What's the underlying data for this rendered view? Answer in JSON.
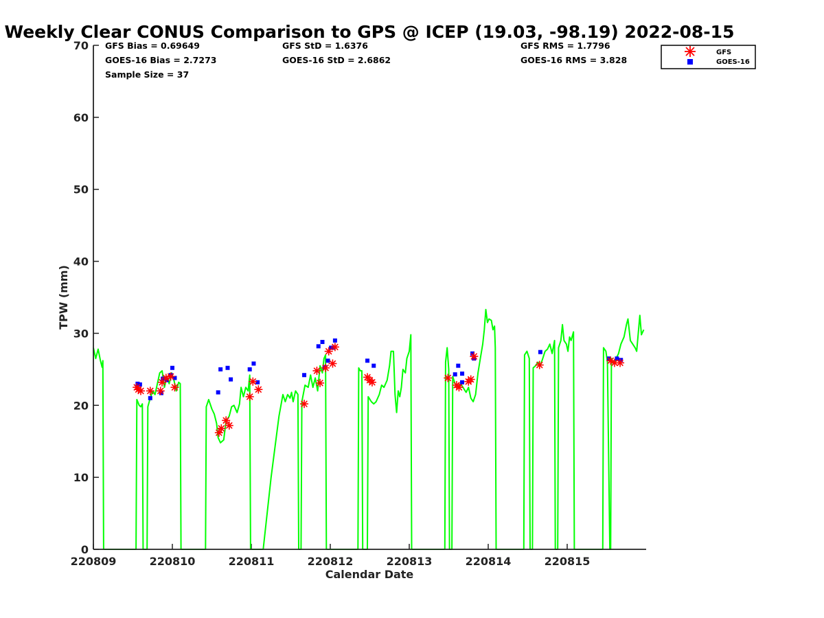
{
  "chart_data": {
    "type": "line+scatter",
    "title": "Weekly Clear CONUS Comparison to GPS @ ICEP (19.03, -98.19) 2022-08-15",
    "xlabel": "Calendar Date",
    "ylabel": "TPW (mm)",
    "xlim": [
      0,
      7
    ],
    "ylim": [
      0,
      70
    ],
    "yticks": [
      0,
      10,
      20,
      30,
      40,
      50,
      60,
      70
    ],
    "xticks": [
      {
        "value": 0,
        "label": "220809"
      },
      {
        "value": 1,
        "label": "220810"
      },
      {
        "value": 2,
        "label": "220811"
      },
      {
        "value": 3,
        "label": "220812"
      },
      {
        "value": 4,
        "label": "220813"
      },
      {
        "value": 5,
        "label": "220814"
      },
      {
        "value": 6,
        "label": "220815"
      }
    ],
    "stats": {
      "gfs_bias": "GFS Bias = 0.69649",
      "goes_bias": "GOES-16 Bias = 2.7273",
      "sample_size": "Sample Size = 37",
      "gfs_std": "GFS StD = 1.6376",
      "goes_std": "GOES-16 StD = 2.6862",
      "gfs_rms": "GFS RMS = 1.7796",
      "goes_rms": "GOES-16 RMS = 3.828"
    },
    "legend": {
      "position": "top-right",
      "entries": [
        {
          "name": "GFS",
          "color": "#ff0000",
          "marker": "asterisk"
        },
        {
          "name": "GOES-16",
          "color": "#0000ff",
          "marker": "square"
        }
      ]
    },
    "gps_line": {
      "color": "#00ff00",
      "points": [
        [
          0.0,
          28.0
        ],
        [
          0.03,
          26.5
        ],
        [
          0.06,
          27.8
        ],
        [
          0.09,
          26.2
        ],
        [
          0.11,
          25.3
        ],
        [
          0.12,
          26.2
        ],
        [
          0.13,
          0
        ],
        [
          0.54,
          0
        ],
        [
          0.55,
          20.8
        ],
        [
          0.58,
          20.0
        ],
        [
          0.6,
          19.8
        ],
        [
          0.62,
          20.2
        ],
        [
          0.63,
          0
        ],
        [
          0.68,
          0
        ],
        [
          0.69,
          19.8
        ],
        [
          0.72,
          21.0
        ],
        [
          0.75,
          22.0
        ],
        [
          0.78,
          21.5
        ],
        [
          0.81,
          23.0
        ],
        [
          0.84,
          24.5
        ],
        [
          0.87,
          24.8
        ],
        [
          0.9,
          22.5
        ],
        [
          0.93,
          24.0
        ],
        [
          0.96,
          23.0
        ],
        [
          0.99,
          24.5
        ],
        [
          1.02,
          23.5
        ],
        [
          1.05,
          22.0
        ],
        [
          1.08,
          23.2
        ],
        [
          1.1,
          23.0
        ],
        [
          1.11,
          0
        ],
        [
          1.42,
          0
        ],
        [
          1.43,
          19.8
        ],
        [
          1.46,
          20.8
        ],
        [
          1.5,
          19.5
        ],
        [
          1.53,
          18.8
        ],
        [
          1.56,
          17.5
        ],
        [
          1.58,
          15.5
        ],
        [
          1.61,
          14.8
        ],
        [
          1.65,
          15.2
        ],
        [
          1.68,
          17.8
        ],
        [
          1.72,
          18.5
        ],
        [
          1.75,
          19.8
        ],
        [
          1.78,
          20.0
        ],
        [
          1.82,
          19.0
        ],
        [
          1.85,
          20.2
        ],
        [
          1.87,
          22.5
        ],
        [
          1.9,
          21.2
        ],
        [
          1.93,
          22.5
        ],
        [
          1.96,
          22.0
        ],
        [
          1.98,
          24.2
        ],
        [
          1.99,
          0
        ],
        [
          2.15,
          0
        ],
        [
          2.25,
          10.0
        ],
        [
          2.35,
          18.5
        ],
        [
          2.4,
          21.5
        ],
        [
          2.43,
          20.5
        ],
        [
          2.46,
          21.5
        ],
        [
          2.49,
          21.0
        ],
        [
          2.51,
          21.8
        ],
        [
          2.53,
          20.5
        ],
        [
          2.56,
          22.0
        ],
        [
          2.59,
          21.5
        ],
        [
          2.6,
          0
        ],
        [
          2.63,
          0
        ],
        [
          2.64,
          20.5
        ],
        [
          2.68,
          22.8
        ],
        [
          2.72,
          22.5
        ],
        [
          2.75,
          24.2
        ],
        [
          2.78,
          22.5
        ],
        [
          2.81,
          23.8
        ],
        [
          2.84,
          22.0
        ],
        [
          2.87,
          25.5
        ],
        [
          2.9,
          24.5
        ],
        [
          2.92,
          26.5
        ],
        [
          2.94,
          27.0
        ],
        [
          2.95,
          0
        ],
        [
          3.35,
          0
        ],
        [
          3.36,
          25.2
        ],
        [
          3.38,
          24.8
        ],
        [
          3.4,
          24.8
        ],
        [
          3.41,
          0
        ],
        [
          3.47,
          0
        ],
        [
          3.48,
          21.2
        ],
        [
          3.52,
          20.5
        ],
        [
          3.55,
          20.2
        ],
        [
          3.58,
          20.5
        ],
        [
          3.62,
          21.5
        ],
        [
          3.65,
          22.8
        ],
        [
          3.68,
          22.5
        ],
        [
          3.72,
          23.5
        ],
        [
          3.75,
          25.5
        ],
        [
          3.77,
          27.5
        ],
        [
          3.8,
          27.5
        ],
        [
          3.82,
          21.5
        ],
        [
          3.84,
          19.0
        ],
        [
          3.86,
          22.0
        ],
        [
          3.88,
          21.2
        ],
        [
          3.9,
          22.5
        ],
        [
          3.92,
          25.0
        ],
        [
          3.95,
          24.5
        ],
        [
          3.97,
          26.5
        ],
        [
          4.0,
          27.5
        ],
        [
          4.02,
          29.8
        ],
        [
          4.03,
          0
        ],
        [
          4.45,
          0
        ],
        [
          4.46,
          26.0
        ],
        [
          4.48,
          28.0
        ],
        [
          4.5,
          25.0
        ],
        [
          4.51,
          0
        ],
        [
          4.54,
          0
        ],
        [
          4.55,
          24.0
        ],
        [
          4.58,
          23.0
        ],
        [
          4.62,
          22.5
        ],
        [
          4.65,
          23.0
        ],
        [
          4.68,
          22.5
        ],
        [
          4.72,
          21.8
        ],
        [
          4.75,
          22.5
        ],
        [
          4.78,
          21.0
        ],
        [
          4.81,
          20.5
        ],
        [
          4.84,
          21.5
        ],
        [
          4.87,
          24.5
        ],
        [
          4.9,
          26.5
        ],
        [
          4.93,
          28.5
        ],
        [
          4.95,
          30.5
        ],
        [
          4.97,
          33.3
        ],
        [
          4.99,
          31.5
        ],
        [
          5.01,
          32.0
        ],
        [
          5.04,
          31.8
        ],
        [
          5.06,
          30.5
        ],
        [
          5.08,
          31.0
        ],
        [
          5.09,
          28.0
        ],
        [
          5.1,
          0
        ],
        [
          5.45,
          0
        ],
        [
          5.46,
          27.0
        ],
        [
          5.49,
          27.5
        ],
        [
          5.52,
          26.5
        ],
        [
          5.53,
          0
        ],
        [
          5.56,
          0
        ],
        [
          5.57,
          25.2
        ],
        [
          5.6,
          25.5
        ],
        [
          5.63,
          26.0
        ],
        [
          5.66,
          25.5
        ],
        [
          5.69,
          26.5
        ],
        [
          5.72,
          27.5
        ],
        [
          5.75,
          27.8
        ],
        [
          5.78,
          28.5
        ],
        [
          5.81,
          27.2
        ],
        [
          5.84,
          29.0
        ],
        [
          5.85,
          0
        ],
        [
          5.88,
          0
        ],
        [
          5.89,
          28.0
        ],
        [
          5.92,
          29.0
        ],
        [
          5.94,
          31.2
        ],
        [
          5.96,
          29.0
        ],
        [
          5.99,
          28.5
        ],
        [
          6.01,
          27.5
        ],
        [
          6.03,
          29.5
        ],
        [
          6.05,
          29.0
        ],
        [
          6.08,
          30.2
        ],
        [
          6.09,
          0
        ],
        [
          6.45,
          0
        ],
        [
          6.46,
          28.0
        ],
        [
          6.49,
          27.5
        ],
        [
          6.51,
          26.0
        ],
        [
          6.54,
          0
        ],
        [
          6.55,
          0
        ],
        [
          6.56,
          26.5
        ],
        [
          6.59,
          25.8
        ],
        [
          6.62,
          26.5
        ],
        [
          6.65,
          27.2
        ],
        [
          6.68,
          28.5
        ],
        [
          6.72,
          29.5
        ],
        [
          6.75,
          31.2
        ],
        [
          6.77,
          32.0
        ],
        [
          6.8,
          29.0
        ],
        [
          6.83,
          28.5
        ],
        [
          6.86,
          28.0
        ],
        [
          6.88,
          27.5
        ],
        [
          6.9,
          30.0
        ],
        [
          6.92,
          32.5
        ],
        [
          6.94,
          29.8
        ],
        [
          6.97,
          30.5
        ]
      ]
    },
    "gfs_points": [
      [
        0.55,
        22.5
      ],
      [
        0.57,
        22.2
      ],
      [
        0.6,
        22.0
      ],
      [
        0.72,
        22.0
      ],
      [
        0.85,
        22.0
      ],
      [
        0.87,
        23.2
      ],
      [
        0.92,
        23.8
      ],
      [
        0.98,
        24.0
      ],
      [
        1.03,
        22.5
      ],
      [
        1.59,
        16.2
      ],
      [
        1.62,
        16.8
      ],
      [
        1.68,
        17.9
      ],
      [
        1.72,
        17.2
      ],
      [
        1.98,
        21.2
      ],
      [
        2.02,
        23.3
      ],
      [
        2.09,
        22.2
      ],
      [
        2.67,
        20.2
      ],
      [
        2.83,
        24.8
      ],
      [
        2.87,
        23.1
      ],
      [
        2.94,
        25.2
      ],
      [
        2.98,
        27.5
      ],
      [
        3.03,
        25.8
      ],
      [
        3.06,
        28.1
      ],
      [
        3.47,
        23.9
      ],
      [
        3.5,
        23.5
      ],
      [
        3.53,
        23.2
      ],
      [
        4.49,
        23.8
      ],
      [
        4.6,
        22.8
      ],
      [
        4.63,
        22.5
      ],
      [
        4.75,
        23.3
      ],
      [
        4.78,
        23.6
      ],
      [
        4.82,
        26.8
      ],
      [
        5.65,
        25.6
      ],
      [
        6.55,
        26.2
      ],
      [
        6.6,
        25.9
      ],
      [
        6.67,
        25.9
      ]
    ],
    "goes_points": [
      [
        0.56,
        23.0
      ],
      [
        0.59,
        22.9
      ],
      [
        0.72,
        21.0
      ],
      [
        0.86,
        21.7
      ],
      [
        0.88,
        23.7
      ],
      [
        0.93,
        23.5
      ],
      [
        0.98,
        24.2
      ],
      [
        1.0,
        25.2
      ],
      [
        1.03,
        23.8
      ],
      [
        1.58,
        21.8
      ],
      [
        1.61,
        25.0
      ],
      [
        1.7,
        25.2
      ],
      [
        1.74,
        23.6
      ],
      [
        1.98,
        25.0
      ],
      [
        2.03,
        25.8
      ],
      [
        2.08,
        23.2
      ],
      [
        2.67,
        24.2
      ],
      [
        2.85,
        28.2
      ],
      [
        2.9,
        28.8
      ],
      [
        2.93,
        25.3
      ],
      [
        2.97,
        26.2
      ],
      [
        3.01,
        28.0
      ],
      [
        3.06,
        29.0
      ],
      [
        3.04,
        28.0
      ],
      [
        3.55,
        25.5
      ],
      [
        3.47,
        26.2
      ],
      [
        4.58,
        24.3
      ],
      [
        4.62,
        25.5
      ],
      [
        4.67,
        24.4
      ],
      [
        4.67,
        23.2
      ],
      [
        4.8,
        27.2
      ],
      [
        4.82,
        26.5
      ],
      [
        5.66,
        27.4
      ],
      [
        6.53,
        26.5
      ],
      [
        6.63,
        26.5
      ],
      [
        6.68,
        26.3
      ]
    ]
  }
}
